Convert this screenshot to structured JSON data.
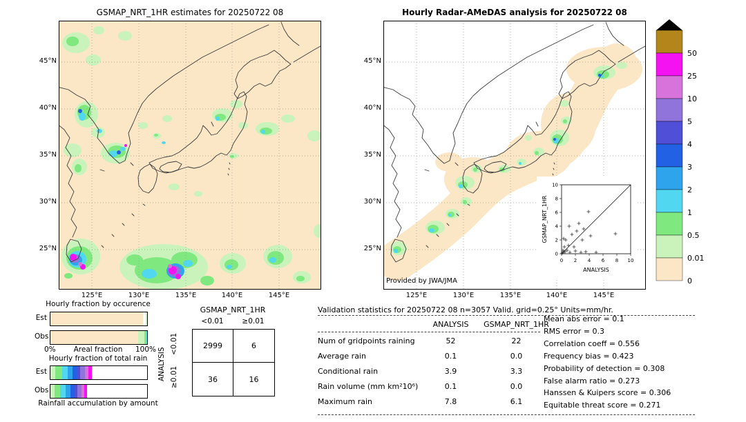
{
  "left_map": {
    "title": "GSMAP_NRT_1HR estimates for 20250722 08",
    "lat_ticks": [
      "45°N",
      "40°N",
      "35°N",
      "30°N",
      "25°N"
    ],
    "lon_ticks": [
      "125°E",
      "130°E",
      "135°E",
      "140°E",
      "145°E"
    ]
  },
  "right_map": {
    "title": "Hourly Radar-AMeDAS analysis for 20250722 08",
    "lat_ticks": [
      "45°N",
      "40°N",
      "35°N",
      "30°N",
      "25°N"
    ],
    "lon_ticks": [
      "125°E",
      "130°E",
      "135°E",
      "140°E",
      "145°E"
    ],
    "credit": "Provided by JWA/JMA"
  },
  "colorbar": {
    "tick_labels": [
      "50",
      "25",
      "10",
      "5",
      "4",
      "3",
      "2",
      "1",
      "0.5",
      "0.01",
      "0"
    ],
    "segment_colors": [
      "#b2861b",
      "#f512f0",
      "#d973dc",
      "#9173dc",
      "#4f4fd8",
      "#2361e4",
      "#2da4ec",
      "#52d7f0",
      "#7fe87f",
      "#c9f3bb",
      "#fbe7c6"
    ],
    "units": "mm/hr",
    "overflow_marker": "black-triangle"
  },
  "occurrence_chart": {
    "title": "Hourly fraction by occurence",
    "rows": [
      "Est",
      "Obs"
    ],
    "axis_left": "0%",
    "axis_label": "Areal fraction",
    "axis_right": "100%",
    "est_segments": [
      {
        "color": "#fbe7c6",
        "pct": 96
      },
      {
        "color": "#ffffff",
        "pct": 2.5
      },
      {
        "color": "#c9f3bb",
        "pct": 1.5
      }
    ],
    "obs_segments": [
      {
        "color": "#fbe7c6",
        "pct": 90.5
      },
      {
        "color": "#c9f3bb",
        "pct": 6.5
      },
      {
        "color": "#7fe87f",
        "pct": 2
      },
      {
        "color": "#52d7f0",
        "pct": 1
      }
    ]
  },
  "totalrain_chart": {
    "title": "Hourly fraction of total rain",
    "rows": [
      "Est",
      "Obs"
    ],
    "caption": "Rainfall accumulation by amount",
    "est_segments": [
      {
        "color": "#c9f3bb",
        "pct": 5
      },
      {
        "color": "#7fe87f",
        "pct": 7
      },
      {
        "color": "#52d7f0",
        "pct": 6
      },
      {
        "color": "#2da4ec",
        "pct": 5
      },
      {
        "color": "#2361e4",
        "pct": 4
      },
      {
        "color": "#4f4fd8",
        "pct": 4
      },
      {
        "color": "#9173dc",
        "pct": 5
      },
      {
        "color": "#d973dc",
        "pct": 3
      },
      {
        "color": "#f512f0",
        "pct": 4
      },
      {
        "color": "#ffffff",
        "pct": 57
      }
    ],
    "obs_segments": [
      {
        "color": "#c9f3bb",
        "pct": 4
      },
      {
        "color": "#7fe87f",
        "pct": 6
      },
      {
        "color": "#52d7f0",
        "pct": 6
      },
      {
        "color": "#2da4ec",
        "pct": 5
      },
      {
        "color": "#2361e4",
        "pct": 4
      },
      {
        "color": "#4f4fd8",
        "pct": 3
      },
      {
        "color": "#9173dc",
        "pct": 4
      },
      {
        "color": "#d973dc",
        "pct": 3
      },
      {
        "color": "#f512f0",
        "pct": 3
      },
      {
        "color": "#ffffff",
        "pct": 62
      }
    ]
  },
  "contingency": {
    "col_group_label": "GSMAP_NRT_1HR",
    "row_group_label": "ANALYSIS",
    "col_labels": [
      "<0.01",
      "≥0.01"
    ],
    "row_labels": [
      "<0.01",
      "≥0.01"
    ],
    "values": [
      [
        "2999",
        "6"
      ],
      [
        "36",
        "16"
      ]
    ]
  },
  "stats": {
    "title": "Validation statistics for 20250722 08  n=3057 Valid. grid=0.25° Units=mm/hr.",
    "columns": [
      "ANALYSIS",
      "GSMAP_NRT_1HR"
    ],
    "rows": [
      {
        "label": "Num of gridpoints raining",
        "analysis": "52",
        "gsmap": "22"
      },
      {
        "label": "Average rain",
        "analysis": "0.1",
        "gsmap": "0.0"
      },
      {
        "label": "Conditional rain",
        "analysis": "3.9",
        "gsmap": "3.3"
      },
      {
        "label": "Rain volume (mm km²10⁶)",
        "analysis": "0.1",
        "gsmap": "0.0"
      },
      {
        "label": "Maximum rain",
        "analysis": "7.8",
        "gsmap": "6.1"
      }
    ],
    "metrics": [
      {
        "label": "Mean abs error",
        "value": "0.1"
      },
      {
        "label": "RMS error",
        "value": "0.3"
      },
      {
        "label": "Correlation coeff",
        "value": "0.556"
      },
      {
        "label": "Frequency bias",
        "value": "0.423"
      },
      {
        "label": "Probability of detection",
        "value": "0.308"
      },
      {
        "label": "False alarm ratio",
        "value": "0.273"
      },
      {
        "label": "Hanssen & Kuipers score",
        "value": "0.306"
      },
      {
        "label": "Equitable threat score",
        "value": "0.271"
      }
    ]
  },
  "inset": {
    "xlabel": "ANALYSIS",
    "ylabel": "GSMAP_NRT_1HR",
    "ticks": [
      0,
      2,
      4,
      6,
      8,
      10
    ]
  },
  "chart_data": [
    {
      "type": "table",
      "name": "contingency-table",
      "col_group": "GSMAP_NRT_1HR",
      "row_group": "ANALYSIS",
      "columns": [
        "<0.01",
        "≥0.01"
      ],
      "rows": [
        "<0.01",
        "≥0.01"
      ],
      "values": [
        [
          2999,
          6
        ],
        [
          36,
          16
        ]
      ],
      "total_gridpoints": 3057
    },
    {
      "type": "scatter",
      "name": "gsmap-vs-analysis-inset",
      "xlabel": "ANALYSIS",
      "ylabel": "GSMAP_NRT_1HR",
      "xlim": [
        0,
        10
      ],
      "ylim": [
        0,
        10
      ],
      "xticks": [
        0,
        2,
        4,
        6,
        8,
        10
      ],
      "yticks": [
        0,
        2,
        4,
        6,
        8,
        10
      ],
      "identity_line": true,
      "points": [
        [
          0.1,
          0.1
        ],
        [
          0.2,
          0.5
        ],
        [
          0.3,
          0.2
        ],
        [
          0.3,
          2.2
        ],
        [
          0.4,
          1.0
        ],
        [
          0.5,
          0.3
        ],
        [
          0.6,
          2.0
        ],
        [
          0.8,
          0.5
        ],
        [
          1.0,
          1.2
        ],
        [
          1.1,
          4.0
        ],
        [
          1.2,
          0.2
        ],
        [
          1.5,
          2.8
        ],
        [
          1.8,
          1.0
        ],
        [
          2.0,
          0.4
        ],
        [
          2.2,
          3.3
        ],
        [
          2.5,
          4.4
        ],
        [
          2.8,
          0.2
        ],
        [
          3.0,
          2.0
        ],
        [
          3.2,
          3.6
        ],
        [
          3.5,
          0.3
        ],
        [
          3.9,
          6.1
        ],
        [
          4.2,
          2.6
        ],
        [
          5.0,
          0.2
        ],
        [
          7.8,
          2.9
        ]
      ]
    },
    {
      "type": "table",
      "name": "validation-statistics",
      "columns": [
        "ANALYSIS",
        "GSMAP_NRT_1HR"
      ],
      "rows": [
        "Num of gridpoints raining",
        "Average rain",
        "Conditional rain",
        "Rain volume (mm km²10⁶)",
        "Maximum rain"
      ],
      "values": [
        [
          52,
          22
        ],
        [
          0.1,
          0.0
        ],
        [
          3.9,
          3.3
        ],
        [
          0.1,
          0.0
        ],
        [
          7.8,
          6.1
        ]
      ]
    },
    {
      "type": "bar",
      "name": "hourly-fraction-by-occurence",
      "orientation": "horizontal",
      "categories": [
        "Est",
        "Obs"
      ],
      "xlabel": "Areal fraction",
      "xlim_pct": [
        0,
        100
      ]
    },
    {
      "type": "bar",
      "name": "hourly-fraction-of-total-rain",
      "orientation": "horizontal",
      "categories": [
        "Est",
        "Obs"
      ],
      "xlabel": "Rainfall accumulation by amount"
    }
  ]
}
